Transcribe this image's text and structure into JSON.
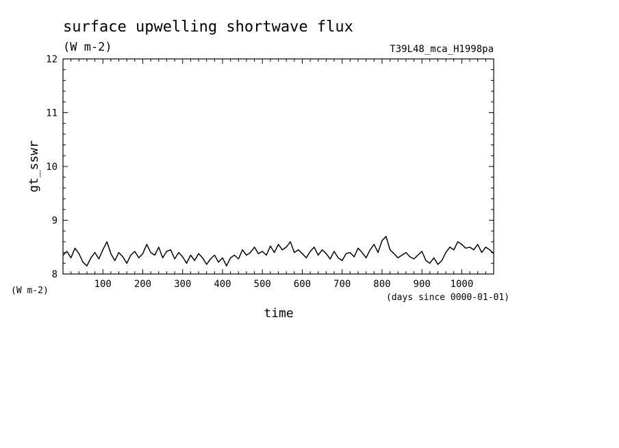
{
  "chart_data": {
    "type": "line",
    "title": "surface upwelling shortwave flux",
    "subtitle": "(W m-2)",
    "run_label": "T39L48_mca_H1998pa",
    "ylabel": "gt_sswr",
    "yunit": "(W m-2)",
    "xlabel": "time",
    "xunit": "(days since 0000-01-01)",
    "xlim": [
      0,
      1080
    ],
    "ylim": [
      8,
      12
    ],
    "x_ticks": [
      100,
      200,
      300,
      400,
      500,
      600,
      700,
      800,
      900,
      1000
    ],
    "y_ticks": [
      8,
      9,
      10,
      11,
      12
    ],
    "grid": false,
    "line_color": "#000000",
    "series": [
      {
        "x": [
          0,
          10,
          20,
          30,
          40,
          50,
          60,
          70,
          80,
          90,
          100,
          110,
          120,
          130,
          140,
          150,
          160,
          170,
          180,
          190,
          200,
          210,
          220,
          230,
          240,
          250,
          260,
          270,
          280,
          290,
          300,
          310,
          320,
          330,
          340,
          350,
          360,
          370,
          380,
          390,
          400,
          410,
          420,
          430,
          440,
          450,
          460,
          470,
          480,
          490,
          500,
          510,
          520,
          530,
          540,
          550,
          560,
          570,
          580,
          590,
          600,
          610,
          620,
          630,
          640,
          650,
          660,
          670,
          680,
          690,
          700,
          710,
          720,
          730,
          740,
          750,
          760,
          770,
          780,
          790,
          800,
          810,
          820,
          830,
          840,
          850,
          860,
          870,
          880,
          890,
          900,
          910,
          920,
          930,
          940,
          950,
          960,
          970,
          980,
          990,
          1000,
          1010,
          1020,
          1030,
          1040,
          1050,
          1060,
          1070,
          1080
        ],
        "values": [
          8.35,
          8.42,
          8.3,
          8.48,
          8.38,
          8.22,
          8.15,
          8.3,
          8.4,
          8.28,
          8.45,
          8.6,
          8.38,
          8.25,
          8.4,
          8.32,
          8.2,
          8.35,
          8.42,
          8.3,
          8.38,
          8.55,
          8.4,
          8.35,
          8.5,
          8.3,
          8.42,
          8.45,
          8.28,
          8.4,
          8.32,
          8.2,
          8.35,
          8.25,
          8.38,
          8.3,
          8.18,
          8.28,
          8.35,
          8.22,
          8.3,
          8.15,
          8.3,
          8.35,
          8.28,
          8.45,
          8.35,
          8.4,
          8.5,
          8.38,
          8.42,
          8.35,
          8.52,
          8.4,
          8.55,
          8.45,
          8.5,
          8.6,
          8.4,
          8.45,
          8.38,
          8.3,
          8.42,
          8.5,
          8.35,
          8.45,
          8.38,
          8.28,
          8.42,
          8.3,
          8.25,
          8.38,
          8.4,
          8.32,
          8.48,
          8.4,
          8.3,
          8.45,
          8.55,
          8.4,
          8.62,
          8.7,
          8.45,
          8.38,
          8.3,
          8.35,
          8.4,
          8.32,
          8.28,
          8.35,
          8.42,
          8.25,
          8.2,
          8.3,
          8.18,
          8.25,
          8.4,
          8.5,
          8.45,
          8.6,
          8.55,
          8.48,
          8.5,
          8.45,
          8.55,
          8.4,
          8.5,
          8.45,
          8.38
        ]
      }
    ]
  }
}
